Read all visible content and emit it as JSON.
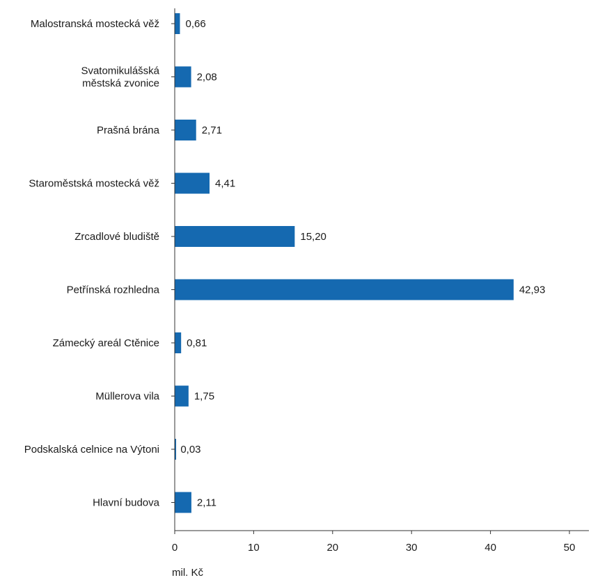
{
  "chart_data": {
    "type": "bar",
    "orientation": "horizontal",
    "categories": [
      [
        "Malostranská mostecká věž"
      ],
      [
        "Svatomikulášská",
        "městská zvonice"
      ],
      [
        "Prašná brána"
      ],
      [
        "Staroměstská mostecká věž"
      ],
      [
        "Zrcadlové bludiště"
      ],
      [
        "Petřínská rozhledna"
      ],
      [
        "Zámecký areál Ctěnice"
      ],
      [
        "Müllerova vila"
      ],
      [
        "Podskalská celnice na Výtoni"
      ],
      [
        "Hlavní budova"
      ]
    ],
    "values": [
      0.66,
      2.08,
      2.71,
      4.41,
      15.2,
      42.93,
      0.81,
      1.75,
      0.03,
      2.11
    ],
    "value_labels": [
      "0,66",
      "2,08",
      "2,71",
      "4,41",
      "15,20",
      "42,93",
      "0,81",
      "1,75",
      "0,03",
      "2,11"
    ],
    "xlim": [
      0,
      52
    ],
    "xticks": [
      0,
      10,
      20,
      30,
      40,
      50
    ],
    "xlabel": "mil. Kč",
    "ylabel": "",
    "title": "",
    "bar_color": "#1569b0",
    "grid": false,
    "legend": "none"
  }
}
